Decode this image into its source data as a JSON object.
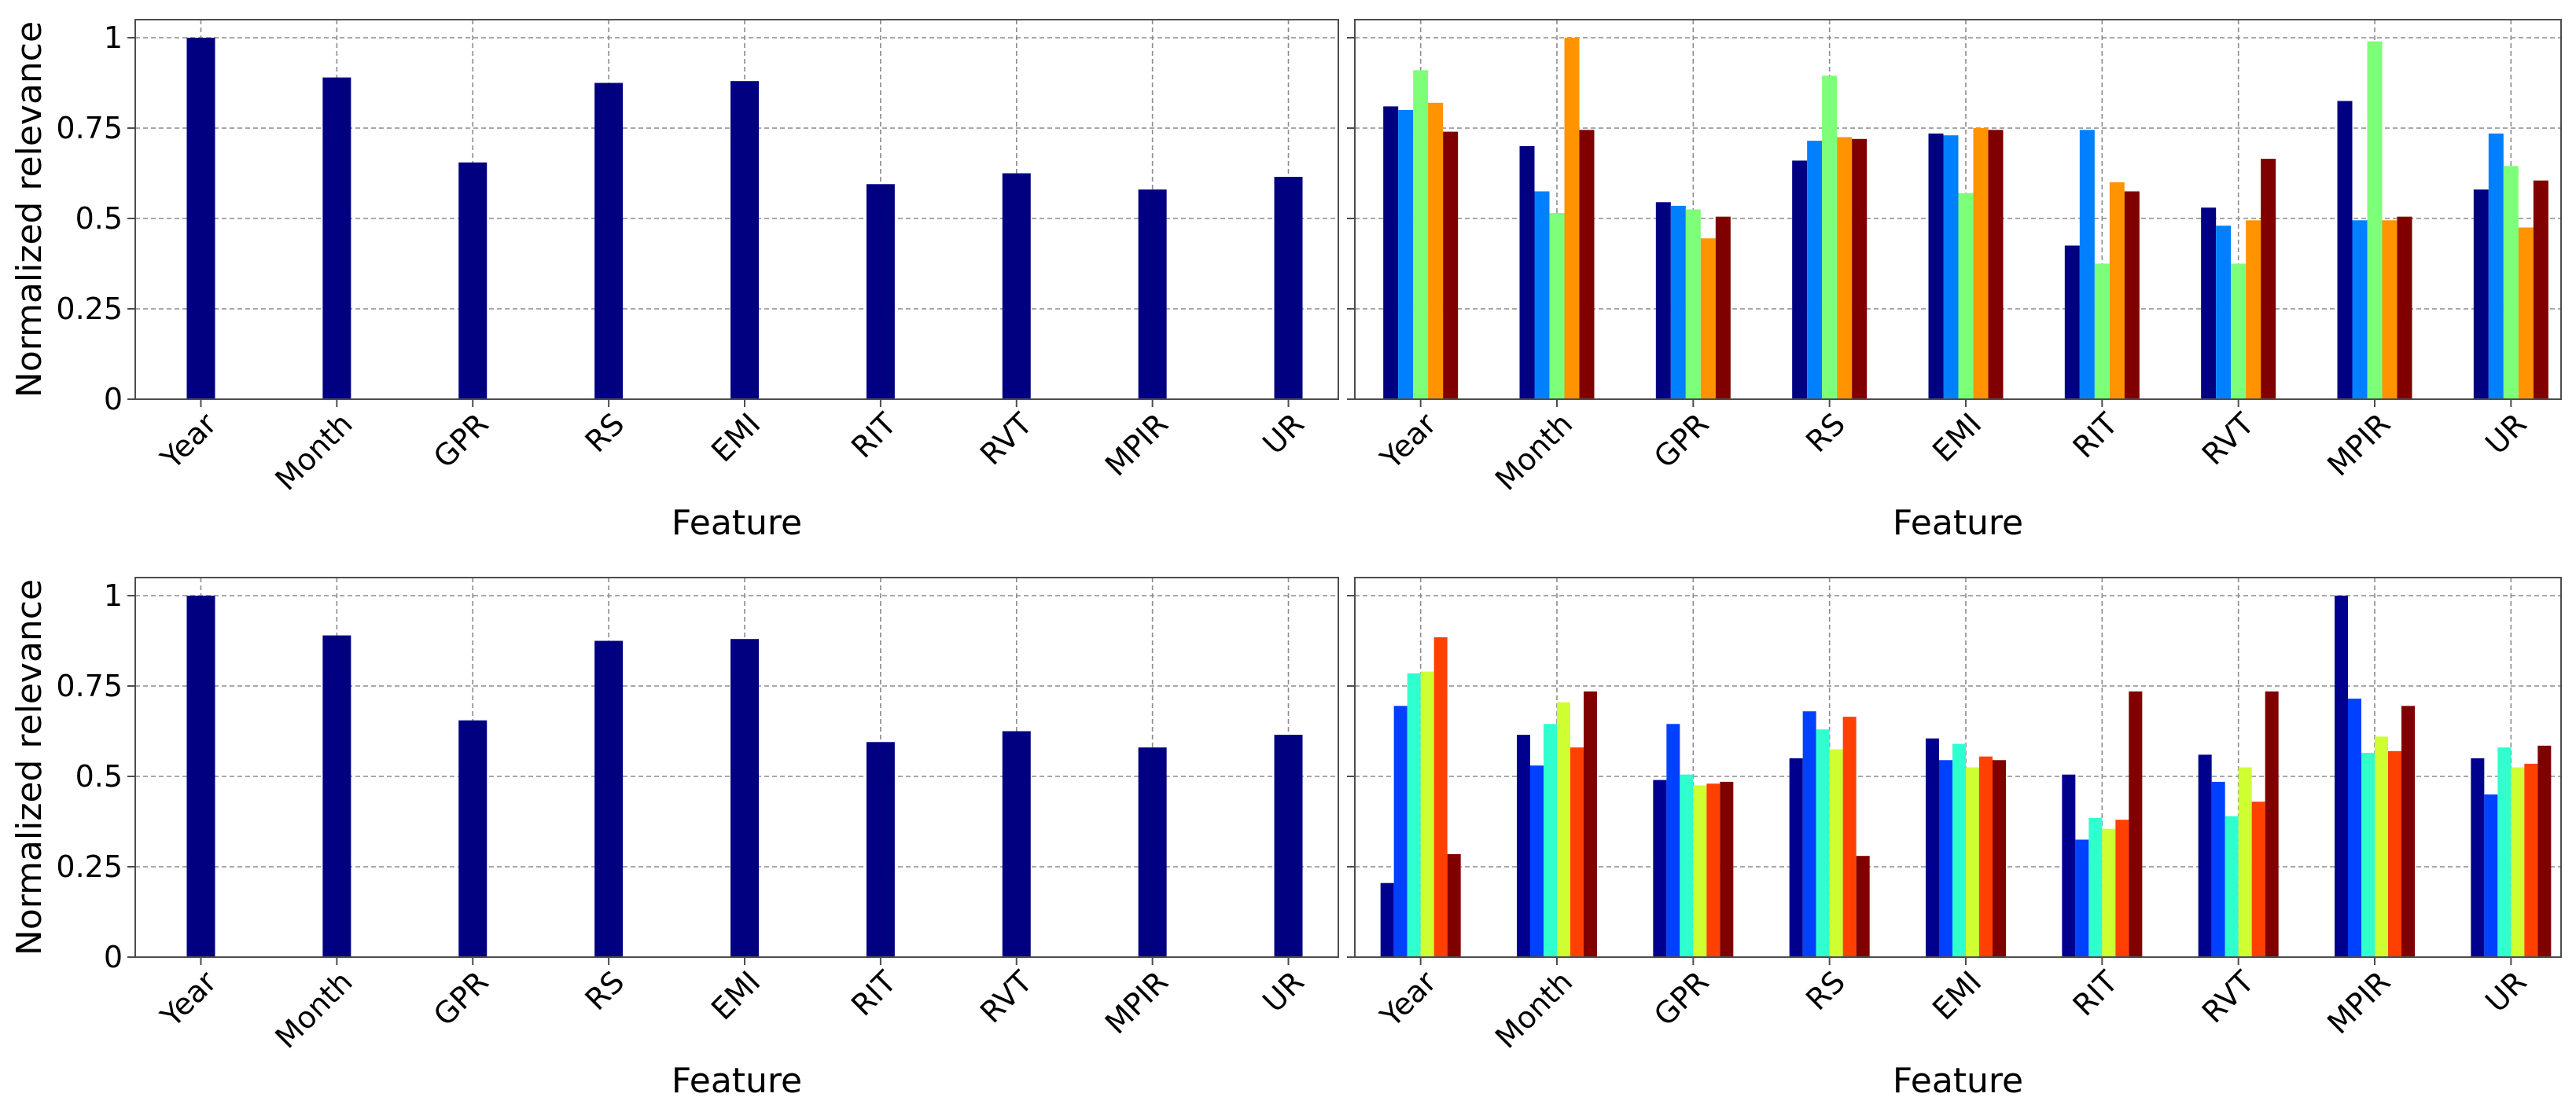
{
  "chart_data": [
    {
      "type": "bar",
      "categories": [
        "Year",
        "Month",
        "GPR",
        "RS",
        "EMI",
        "RIT",
        "RVT",
        "MPIR",
        "UR"
      ],
      "series": [
        {
          "values": [
            1.0,
            0.89,
            0.655,
            0.875,
            0.88,
            0.595,
            0.625,
            0.58,
            0.615
          ],
          "color": "#000080"
        }
      ],
      "xlabel": "Feature",
      "ylabel": "Normalized relevance",
      "ylim": [
        0,
        1.05
      ],
      "yticks": [
        "0",
        "0.25",
        "0.5",
        "0.75",
        "1"
      ],
      "grid": true
    },
    {
      "type": "bar",
      "categories": [
        "Year",
        "Month",
        "GPR",
        "RS",
        "EMI",
        "RIT",
        "RVT",
        "MPIR",
        "UR"
      ],
      "series": [
        {
          "values": [
            0.81,
            0.7,
            0.545,
            0.66,
            0.735,
            0.425,
            0.53,
            0.825,
            0.58
          ],
          "color": "#000080"
        },
        {
          "values": [
            0.8,
            0.575,
            0.535,
            0.715,
            0.73,
            0.745,
            0.48,
            0.495,
            0.735
          ],
          "color": "#0080ff"
        },
        {
          "values": [
            0.91,
            0.515,
            0.525,
            0.895,
            0.57,
            0.375,
            0.375,
            0.99,
            0.645
          ],
          "color": "#7dff7a"
        },
        {
          "values": [
            0.82,
            1.0,
            0.445,
            0.725,
            0.75,
            0.6,
            0.495,
            0.495,
            0.475
          ],
          "color": "#ff9400"
        },
        {
          "values": [
            0.74,
            0.745,
            0.505,
            0.72,
            0.745,
            0.575,
            0.665,
            0.505,
            0.605
          ],
          "color": "#800000"
        }
      ],
      "xlabel": "Feature",
      "ylim": [
        0,
        1.05
      ],
      "grid": true
    },
    {
      "type": "bar",
      "categories": [
        "Year",
        "Month",
        "GPR",
        "RS",
        "EMI",
        "RIT",
        "RVT",
        "MPIR",
        "UR"
      ],
      "series": [
        {
          "values": [
            1.0,
            0.89,
            0.655,
            0.875,
            0.88,
            0.595,
            0.625,
            0.58,
            0.615
          ],
          "color": "#000080"
        }
      ],
      "xlabel": "Feature",
      "ylabel": "Normalized relevance",
      "ylim": [
        0,
        1.05
      ],
      "yticks": [
        "0",
        "0.25",
        "0.5",
        "0.75",
        "1"
      ],
      "grid": true
    },
    {
      "type": "bar",
      "categories": [
        "Year",
        "Month",
        "GPR",
        "RS",
        "EMI",
        "RIT",
        "RVT",
        "MPIR",
        "UR"
      ],
      "series": [
        {
          "values": [
            0.205,
            0.615,
            0.49,
            0.55,
            0.605,
            0.505,
            0.56,
            1.0,
            0.55
          ],
          "color": "#00008f"
        },
        {
          "values": [
            0.695,
            0.53,
            0.645,
            0.68,
            0.545,
            0.325,
            0.485,
            0.715,
            0.45
          ],
          "color": "#0040ff"
        },
        {
          "values": [
            0.785,
            0.645,
            0.505,
            0.63,
            0.59,
            0.385,
            0.39,
            0.565,
            0.58
          ],
          "color": "#30ffcf"
        },
        {
          "values": [
            0.79,
            0.705,
            0.475,
            0.575,
            0.525,
            0.355,
            0.525,
            0.61,
            0.525
          ],
          "color": "#cfff30"
        },
        {
          "values": [
            0.885,
            0.58,
            0.48,
            0.665,
            0.555,
            0.38,
            0.43,
            0.57,
            0.535
          ],
          "color": "#ff4000"
        },
        {
          "values": [
            0.285,
            0.735,
            0.485,
            0.28,
            0.545,
            0.735,
            0.735,
            0.695,
            0.585
          ],
          "color": "#800000"
        }
      ],
      "xlabel": "Feature",
      "ylim": [
        0,
        1.05
      ],
      "grid": true
    }
  ]
}
